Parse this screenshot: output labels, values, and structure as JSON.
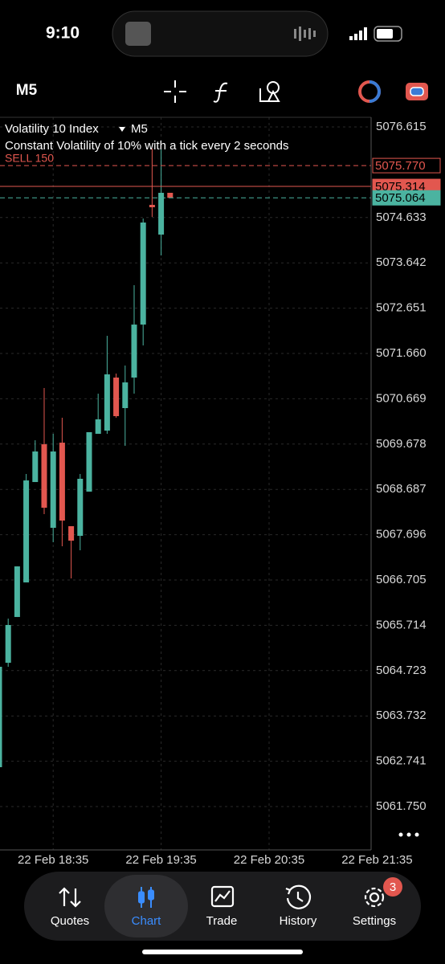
{
  "status": {
    "time": "9:10"
  },
  "toolbar": {
    "timeframe": "M5"
  },
  "chart_data": {
    "type": "candlestick",
    "title": "Volatility 10 Index",
    "timeframe": "M5",
    "subtitle": "Constant Volatility of 10% with a tick every 2 seconds",
    "annotation": "SELL 150",
    "up_color": "#4bb3a0",
    "down_color": "#e2574f",
    "grid": true,
    "ylim": [
      5060.801,
      5076.826
    ],
    "yticks": [
      5076.615,
      5074.633,
      5073.642,
      5072.651,
      {
        "value": 5071.66,
        "label": "5071.660"
      },
      5070.669,
      5069.678,
      5068.687,
      5067.696,
      5066.705,
      5065.714,
      5064.723,
      5063.732,
      5062.741,
      {
        "value": 5061.75,
        "label": "5061.750"
      }
    ],
    "xlim": [
      0.09,
      41.34
    ],
    "xticks": [
      {
        "value": 6,
        "label": "22 Feb 18:35"
      },
      {
        "value": 18,
        "label": "22 Feb 19:35"
      },
      {
        "value": 30,
        "label": "22 Feb 20:35"
      },
      {
        "value": 42,
        "label": "22 Feb 21:35"
      }
    ],
    "price_lines": [
      {
        "value": 5075.77,
        "label": "5075.770",
        "color": "#e2574f"
      },
      {
        "value": 5075.314,
        "color": "#e2574f"
      },
      {
        "value": 5075.064,
        "color": "#4bb3a0"
      }
    ],
    "open": [
      5062.611,
      5064.895,
      5065.896,
      5066.652,
      5068.848,
      5069.674,
      5067.847,
      5069.709,
      5067.882,
      5067.671,
      5068.638,
      5069.903,
      5069.973,
      5071.133,
      5070.465,
      5071.133,
      5072.292,
      5074.911,
      5074.26,
      5075.174
    ],
    "high": [
      5064.807,
      5065.861,
      5067.003,
      5069.024,
      5069.762,
      5070.904,
      5069.903,
      5070.254,
      5067.882,
      5069.024,
      5069.938,
      5070.781,
      5072.046,
      5071.221,
      5071.396,
      5073.153,
      5074.612,
      5076.141,
      5076.141,
      5075.174
    ],
    "low": [
      5062.523,
      5064.807,
      5065.896,
      5066.652,
      5068.848,
      5068.146,
      5067.531,
      5067.443,
      5066.74,
      5067.355,
      5068.638,
      5069.903,
      5069.903,
      5070.254,
      5069.639,
      5070.781,
      5071.836,
      5074.647,
      5073.804,
      5075.064
    ],
    "close": [
      5064.807,
      5065.721,
      5067.003,
      5068.883,
      5069.516,
      5068.286,
      5069.516,
      5068.005,
      5067.566,
      5068.919,
      5069.938,
      5070.219,
      5071.203,
      5070.289,
      5071.027,
      5072.292,
      5074.524,
      5074.858,
      5075.174,
      5075.064
    ]
  },
  "nav": {
    "items": [
      "Quotes",
      "Chart",
      "Trade",
      "History",
      "Settings"
    ],
    "badge": "3"
  }
}
